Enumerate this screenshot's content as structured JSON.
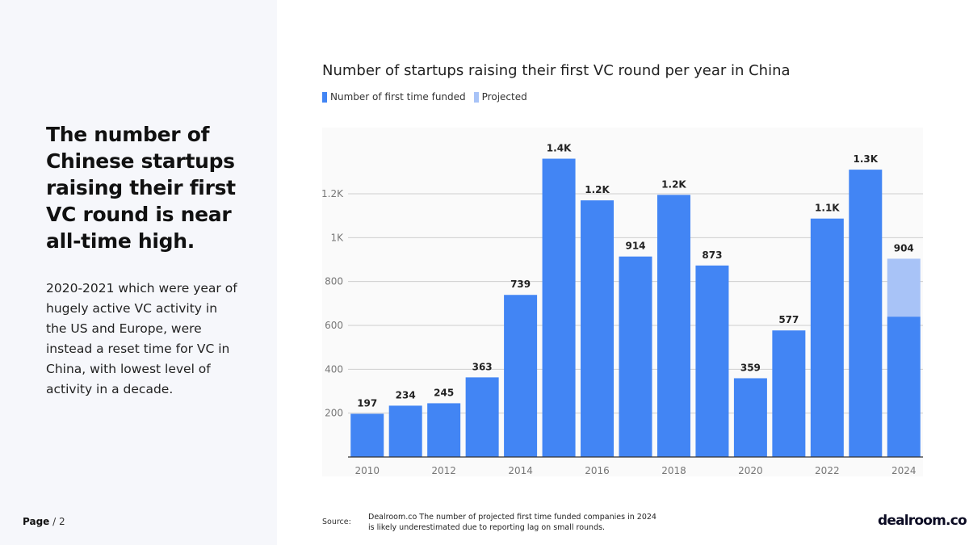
{
  "left_panel": {
    "headline": "The number of Chinese startups raising their first VC round is near all-time high.",
    "body": "2020-2021 which were year of hugely active VC activity in the US and Europe, were instead a reset time for VC in China, with lowest level of activity in a decade.",
    "page_label": "Page",
    "page_number": "/ 2"
  },
  "colors": {
    "funded": "#4285f4",
    "projected": "#a8c3f7",
    "grid": "#cfcfcf",
    "panel_bg": "#f6f7fb"
  },
  "chart_data": {
    "type": "bar",
    "stacked": true,
    "title": "Number of startups raising their first VC round per year in China",
    "legend": [
      "Number of first time funded",
      "Projected"
    ],
    "legend_position": "top-left",
    "categories": [
      "2010",
      "2011",
      "2012",
      "2013",
      "2014",
      "2015",
      "2016",
      "2017",
      "2018",
      "2019",
      "2020",
      "2021",
      "2022",
      "2023",
      "2024"
    ],
    "series": [
      {
        "name": "Number of first time funded",
        "values": [
          197,
          234,
          245,
          363,
          739,
          1360,
          1170,
          914,
          1195,
          873,
          359,
          577,
          1087,
          1310,
          640
        ]
      },
      {
        "name": "Projected",
        "values": [
          0,
          0,
          0,
          0,
          0,
          0,
          0,
          0,
          0,
          0,
          0,
          0,
          0,
          0,
          264
        ]
      }
    ],
    "data_labels": [
      "197",
      "234",
      "245",
      "363",
      "739",
      "1.4K",
      "1.2K",
      "914",
      "1.2K",
      "873",
      "359",
      "577",
      "1.1K",
      "1.3K",
      "904"
    ],
    "x_tick_labels": [
      "2010",
      "2012",
      "2014",
      "2016",
      "2018",
      "2020",
      "2022",
      "2024"
    ],
    "y_ticks": [
      200,
      400,
      600,
      800,
      1000,
      1200
    ],
    "y_tick_labels": [
      "200",
      "400",
      "600",
      "800",
      "1K",
      "1.2K"
    ],
    "ylim": [
      0,
      1420
    ],
    "grid": true
  },
  "footer": {
    "source_label": "Source:",
    "source_text": "Dealroom.co  The number of projected first time funded companies in 2024 is likely underestimated due to reporting lag on small rounds.",
    "logo": "dealroom.co"
  }
}
